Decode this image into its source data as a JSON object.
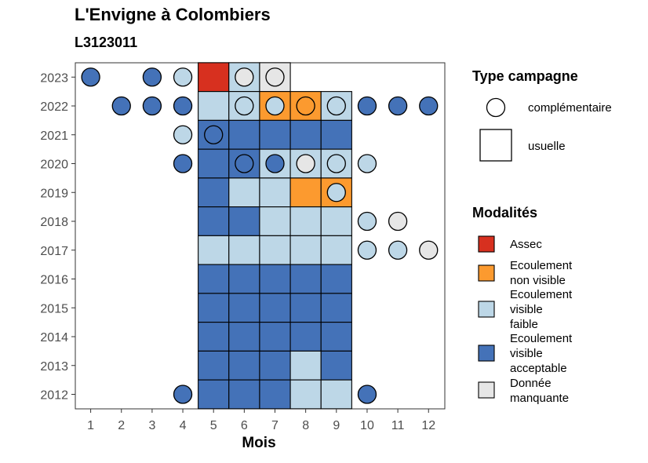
{
  "chart_data": {
    "type": "heatmap",
    "title": "L'Envigne à Colombiers",
    "subtitle": "L3123011",
    "xlabel": "Mois",
    "ylabel": "",
    "x_ticks": [
      "1",
      "2",
      "3",
      "4",
      "5",
      "6",
      "7",
      "8",
      "9",
      "10",
      "11",
      "12"
    ],
    "y_ticks": [
      "2012",
      "2013",
      "2014",
      "2015",
      "2016",
      "2017",
      "2018",
      "2019",
      "2020",
      "2021",
      "2022",
      "2023"
    ],
    "grid": false,
    "legend_type": {
      "title": "Type campagne",
      "items": [
        {
          "key": "complementaire",
          "label": "complémentaire",
          "shape": "circle"
        },
        {
          "key": "usuelle",
          "label": "usuelle",
          "shape": "square"
        }
      ]
    },
    "legend_modalites": {
      "title": "Modalités",
      "items": [
        {
          "key": "assec",
          "label": "Assec",
          "color": "#d7301f"
        },
        {
          "key": "nonvisible",
          "label": "Ecoulement non visible",
          "color": "#fc9a2f"
        },
        {
          "key": "faible",
          "label": "Ecoulement visible faible",
          "color": "#bdd7e7"
        },
        {
          "key": "acceptable",
          "label": "Ecoulement visible acceptable",
          "color": "#4472b8"
        },
        {
          "key": "manquante",
          "label": "Donnée manquante",
          "color": "#e6e6e6"
        }
      ]
    },
    "usuelle": [
      {
        "year": 2023,
        "month": 5,
        "value": "assec"
      },
      {
        "year": 2023,
        "month": 6,
        "value": "faible"
      },
      {
        "year": 2023,
        "month": 7,
        "value": "manquante"
      },
      {
        "year": 2022,
        "month": 5,
        "value": "faible"
      },
      {
        "year": 2022,
        "month": 6,
        "value": "faible"
      },
      {
        "year": 2022,
        "month": 7,
        "value": "nonvisible"
      },
      {
        "year": 2022,
        "month": 8,
        "value": "nonvisible"
      },
      {
        "year": 2022,
        "month": 9,
        "value": "faible"
      },
      {
        "year": 2021,
        "month": 5,
        "value": "acceptable"
      },
      {
        "year": 2021,
        "month": 6,
        "value": "acceptable"
      },
      {
        "year": 2021,
        "month": 7,
        "value": "acceptable"
      },
      {
        "year": 2021,
        "month": 8,
        "value": "acceptable"
      },
      {
        "year": 2021,
        "month": 9,
        "value": "acceptable"
      },
      {
        "year": 2020,
        "month": 5,
        "value": "acceptable"
      },
      {
        "year": 2020,
        "month": 6,
        "value": "acceptable"
      },
      {
        "year": 2020,
        "month": 7,
        "value": "faible"
      },
      {
        "year": 2020,
        "month": 8,
        "value": "faible"
      },
      {
        "year": 2020,
        "month": 9,
        "value": "faible"
      },
      {
        "year": 2019,
        "month": 5,
        "value": "acceptable"
      },
      {
        "year": 2019,
        "month": 6,
        "value": "faible"
      },
      {
        "year": 2019,
        "month": 7,
        "value": "faible"
      },
      {
        "year": 2019,
        "month": 8,
        "value": "nonvisible"
      },
      {
        "year": 2019,
        "month": 9,
        "value": "nonvisible"
      },
      {
        "year": 2018,
        "month": 5,
        "value": "acceptable"
      },
      {
        "year": 2018,
        "month": 6,
        "value": "acceptable"
      },
      {
        "year": 2018,
        "month": 7,
        "value": "faible"
      },
      {
        "year": 2018,
        "month": 8,
        "value": "faible"
      },
      {
        "year": 2018,
        "month": 9,
        "value": "faible"
      },
      {
        "year": 2017,
        "month": 5,
        "value": "faible"
      },
      {
        "year": 2017,
        "month": 6,
        "value": "faible"
      },
      {
        "year": 2017,
        "month": 7,
        "value": "faible"
      },
      {
        "year": 2017,
        "month": 8,
        "value": "faible"
      },
      {
        "year": 2017,
        "month": 9,
        "value": "faible"
      },
      {
        "year": 2016,
        "month": 5,
        "value": "acceptable"
      },
      {
        "year": 2016,
        "month": 6,
        "value": "acceptable"
      },
      {
        "year": 2016,
        "month": 7,
        "value": "acceptable"
      },
      {
        "year": 2016,
        "month": 8,
        "value": "acceptable"
      },
      {
        "year": 2016,
        "month": 9,
        "value": "acceptable"
      },
      {
        "year": 2015,
        "month": 5,
        "value": "acceptable"
      },
      {
        "year": 2015,
        "month": 6,
        "value": "acceptable"
      },
      {
        "year": 2015,
        "month": 7,
        "value": "acceptable"
      },
      {
        "year": 2015,
        "month": 8,
        "value": "acceptable"
      },
      {
        "year": 2015,
        "month": 9,
        "value": "acceptable"
      },
      {
        "year": 2014,
        "month": 5,
        "value": "acceptable"
      },
      {
        "year": 2014,
        "month": 6,
        "value": "acceptable"
      },
      {
        "year": 2014,
        "month": 7,
        "value": "acceptable"
      },
      {
        "year": 2014,
        "month": 8,
        "value": "acceptable"
      },
      {
        "year": 2014,
        "month": 9,
        "value": "acceptable"
      },
      {
        "year": 2013,
        "month": 5,
        "value": "acceptable"
      },
      {
        "year": 2013,
        "month": 6,
        "value": "acceptable"
      },
      {
        "year": 2013,
        "month": 7,
        "value": "acceptable"
      },
      {
        "year": 2013,
        "month": 8,
        "value": "faible"
      },
      {
        "year": 2013,
        "month": 9,
        "value": "acceptable"
      },
      {
        "year": 2012,
        "month": 5,
        "value": "acceptable"
      },
      {
        "year": 2012,
        "month": 6,
        "value": "acceptable"
      },
      {
        "year": 2012,
        "month": 7,
        "value": "acceptable"
      },
      {
        "year": 2012,
        "month": 8,
        "value": "faible"
      },
      {
        "year": 2012,
        "month": 9,
        "value": "faible"
      }
    ],
    "complementaire": [
      {
        "year": 2023,
        "month": 1,
        "value": "acceptable"
      },
      {
        "year": 2023,
        "month": 3,
        "value": "acceptable"
      },
      {
        "year": 2023,
        "month": 4,
        "value": "faible"
      },
      {
        "year": 2023,
        "month": 6,
        "value": "manquante"
      },
      {
        "year": 2023,
        "month": 7,
        "value": "manquante"
      },
      {
        "year": 2022,
        "month": 2,
        "value": "acceptable"
      },
      {
        "year": 2022,
        "month": 3,
        "value": "acceptable"
      },
      {
        "year": 2022,
        "month": 4,
        "value": "acceptable"
      },
      {
        "year": 2022,
        "month": 6,
        "value": "faible"
      },
      {
        "year": 2022,
        "month": 7,
        "value": "faible"
      },
      {
        "year": 2022,
        "month": 8,
        "value": "nonvisible"
      },
      {
        "year": 2022,
        "month": 9,
        "value": "faible"
      },
      {
        "year": 2022,
        "month": 10,
        "value": "acceptable"
      },
      {
        "year": 2022,
        "month": 11,
        "value": "acceptable"
      },
      {
        "year": 2022,
        "month": 12,
        "value": "acceptable"
      },
      {
        "year": 2021,
        "month": 4,
        "value": "faible"
      },
      {
        "year": 2021,
        "month": 5,
        "value": "acceptable"
      },
      {
        "year": 2020,
        "month": 4,
        "value": "acceptable"
      },
      {
        "year": 2020,
        "month": 6,
        "value": "acceptable"
      },
      {
        "year": 2020,
        "month": 7,
        "value": "acceptable"
      },
      {
        "year": 2020,
        "month": 8,
        "value": "manquante"
      },
      {
        "year": 2020,
        "month": 9,
        "value": "faible"
      },
      {
        "year": 2020,
        "month": 10,
        "value": "faible"
      },
      {
        "year": 2019,
        "month": 9,
        "value": "faible"
      },
      {
        "year": 2018,
        "month": 10,
        "value": "faible"
      },
      {
        "year": 2018,
        "month": 11,
        "value": "manquante"
      },
      {
        "year": 2017,
        "month": 10,
        "value": "faible"
      },
      {
        "year": 2017,
        "month": 11,
        "value": "faible"
      },
      {
        "year": 2017,
        "month": 12,
        "value": "manquante"
      },
      {
        "year": 2012,
        "month": 4,
        "value": "acceptable"
      },
      {
        "year": 2012,
        "month": 10,
        "value": "acceptable"
      }
    ]
  }
}
